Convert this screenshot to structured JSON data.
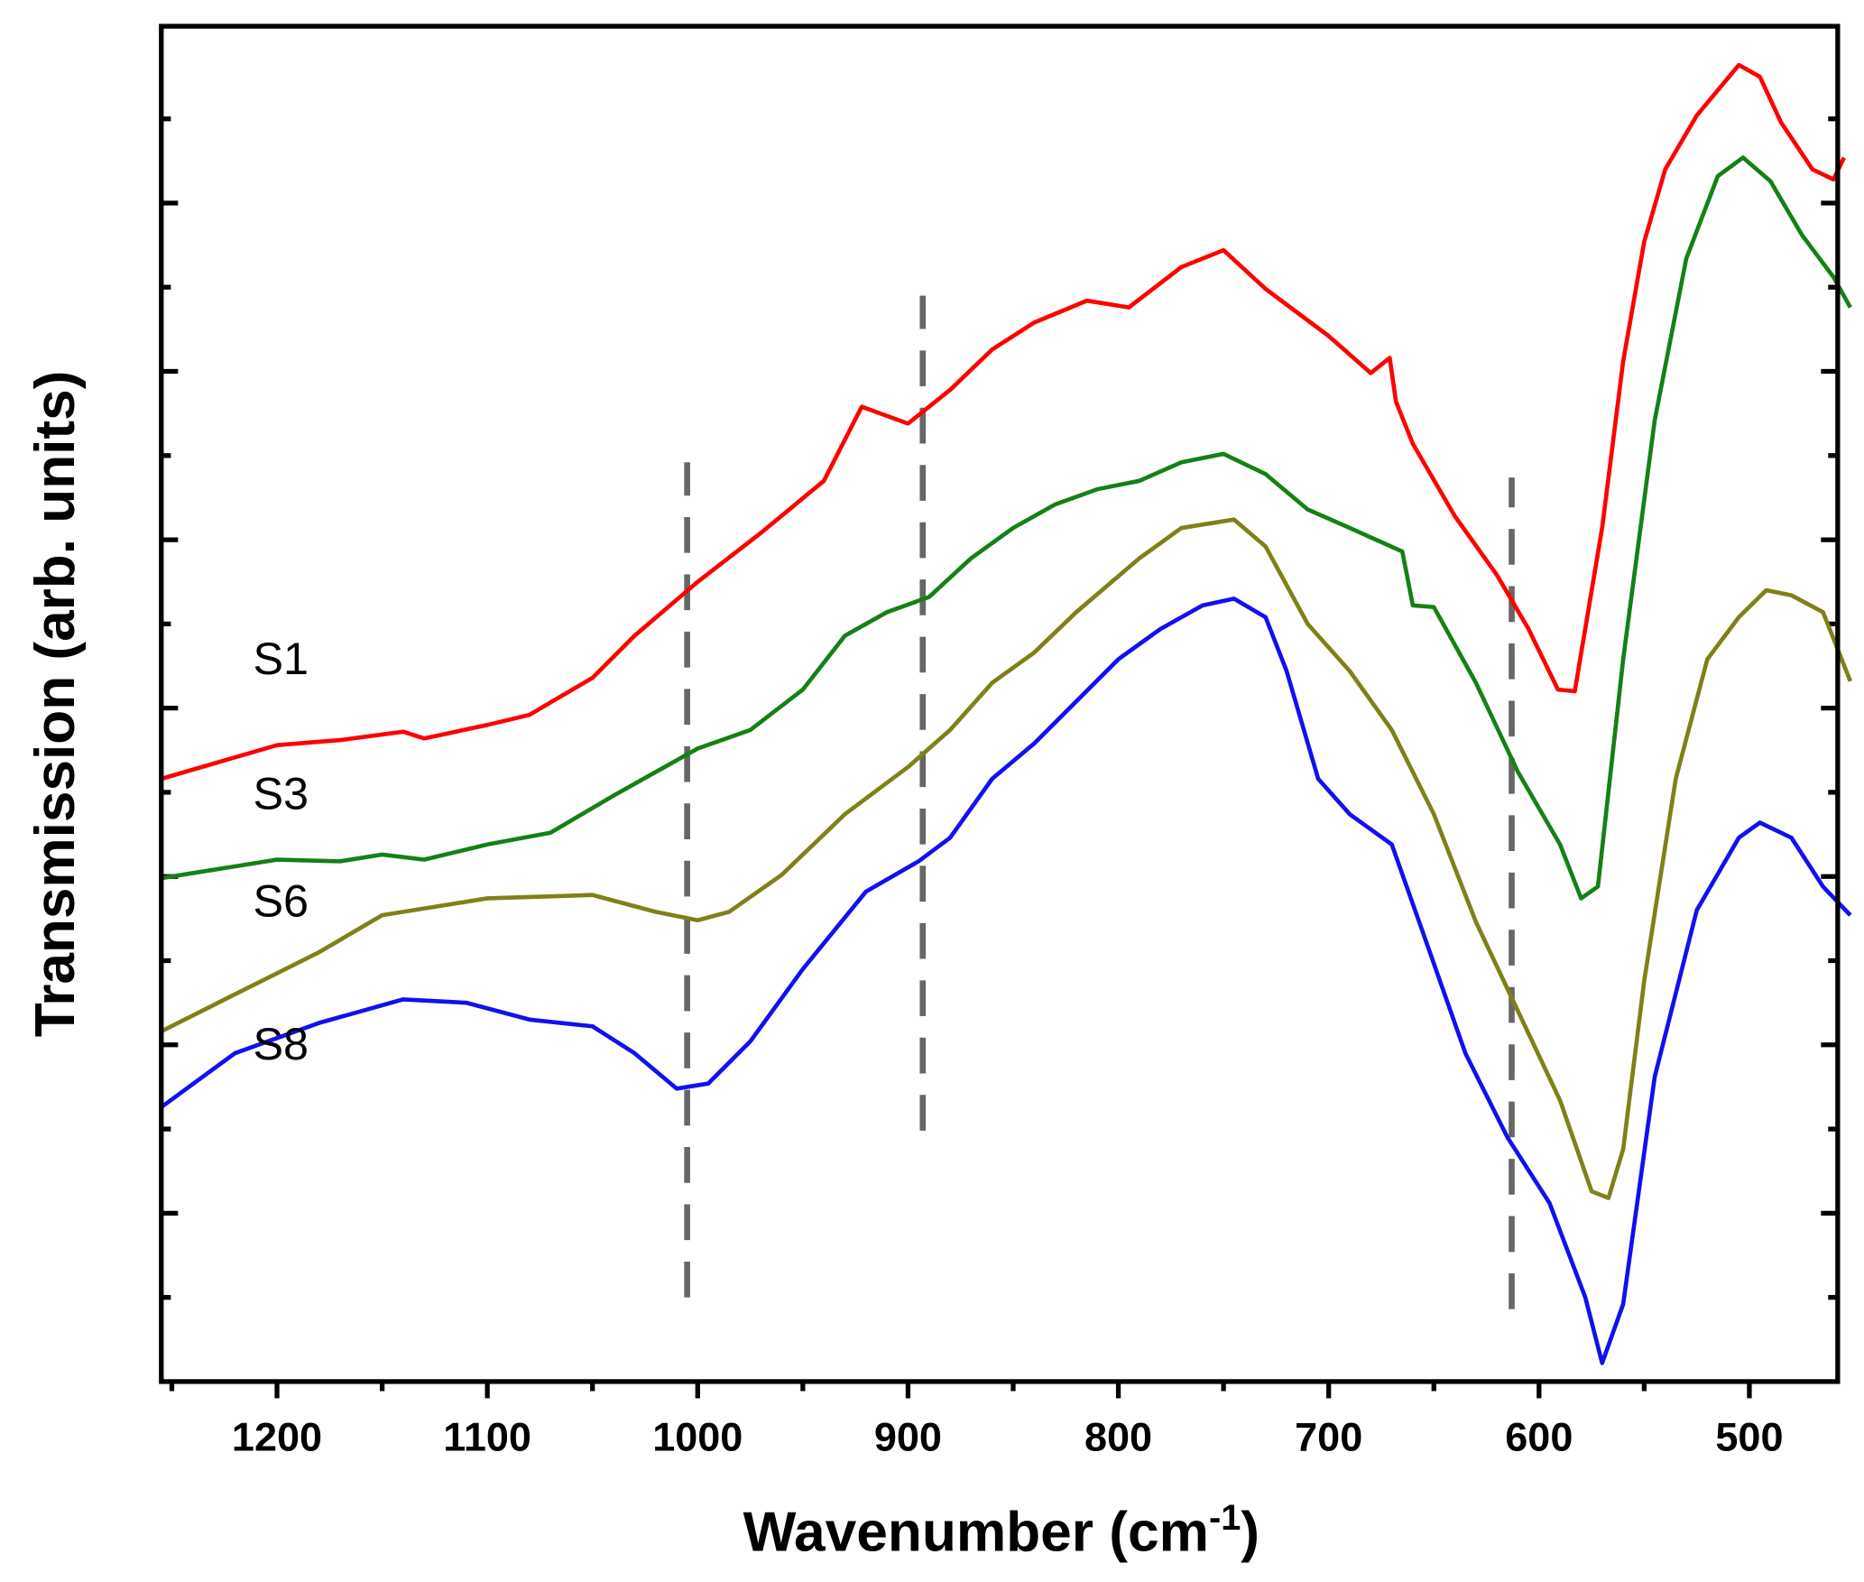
{
  "chart_data": {
    "type": "line",
    "xlabel": {
      "text": "Wavenumber (cm",
      "sup": "-1",
      "end": ")"
    },
    "ylabel": "Transmission (arb. units)",
    "xlim": [
      1255,
      458
    ],
    "ylim": [
      0,
      8.05
    ],
    "xticks": [
      1200,
      1100,
      1000,
      900,
      800,
      700,
      600,
      500
    ],
    "xminor_ticks": [
      1250,
      1150,
      1050,
      950,
      850,
      750,
      650,
      550
    ],
    "yticks": [
      1,
      2,
      3,
      4,
      5,
      6,
      7
    ],
    "yminor_ticks": [
      0.5,
      1.5,
      2.5,
      3.5,
      4.5,
      5.5,
      6.5,
      7.5
    ],
    "series": [
      {
        "name": "S1",
        "color": "#ff0000",
        "x": [
          1255,
          1200,
          1170,
          1140,
          1130,
          1100,
          1080,
          1050,
          1030,
          1000,
          970,
          940,
          922,
          900,
          880,
          860,
          840,
          815,
          795,
          770,
          750,
          730,
          700,
          680,
          671,
          668,
          660,
          640,
          620,
          605,
          591,
          583,
          570,
          560,
          550,
          540,
          525,
          505,
          495,
          485,
          470,
          460,
          455
        ],
        "values": [
          3.58,
          3.78,
          3.81,
          3.86,
          3.82,
          3.9,
          3.96,
          4.18,
          4.43,
          4.75,
          5.04,
          5.35,
          5.79,
          5.69,
          5.89,
          6.13,
          6.29,
          6.42,
          6.38,
          6.62,
          6.72,
          6.49,
          6.21,
          5.99,
          6.08,
          5.82,
          5.57,
          5.14,
          4.79,
          4.47,
          4.11,
          4.1,
          5.07,
          6.06,
          6.77,
          7.2,
          7.52,
          7.82,
          7.75,
          7.48,
          7.2,
          7.14,
          7.27
        ]
      },
      {
        "name": "S3",
        "color": "#168016",
        "x": [
          1255,
          1200,
          1170,
          1150,
          1130,
          1100,
          1070,
          1040,
          1000,
          975,
          950,
          930,
          910,
          890,
          870,
          850,
          830,
          810,
          790,
          770,
          750,
          730,
          710,
          690,
          665,
          660,
          650,
          630,
          610,
          590,
          580,
          572,
          560,
          545,
          530,
          515,
          503,
          490,
          475,
          460,
          452
        ],
        "values": [
          2.99,
          3.1,
          3.09,
          3.13,
          3.1,
          3.19,
          3.26,
          3.48,
          3.76,
          3.87,
          4.11,
          4.43,
          4.57,
          4.66,
          4.89,
          5.07,
          5.21,
          5.3,
          5.35,
          5.46,
          5.51,
          5.39,
          5.18,
          5.07,
          4.93,
          4.61,
          4.6,
          4.15,
          3.62,
          3.19,
          2.87,
          2.94,
          4.29,
          5.71,
          6.67,
          7.16,
          7.27,
          7.13,
          6.81,
          6.56,
          6.38
        ]
      },
      {
        "name": "S6",
        "color": "#808018",
        "x": [
          1255,
          1220,
          1180,
          1150,
          1100,
          1050,
          1020,
          1000,
          985,
          960,
          930,
          900,
          880,
          860,
          840,
          820,
          790,
          770,
          745,
          730,
          710,
          690,
          670,
          650,
          630,
          610,
          590,
          575,
          567,
          560,
          550,
          535,
          520,
          505,
          492,
          480,
          465,
          452
        ],
        "values": [
          2.08,
          2.3,
          2.55,
          2.77,
          2.87,
          2.89,
          2.79,
          2.74,
          2.79,
          3.01,
          3.37,
          3.65,
          3.87,
          4.15,
          4.33,
          4.57,
          4.89,
          5.07,
          5.12,
          4.96,
          4.5,
          4.22,
          3.87,
          3.37,
          2.73,
          2.2,
          1.67,
          1.13,
          1.09,
          1.38,
          2.38,
          3.58,
          4.29,
          4.54,
          4.7,
          4.67,
          4.57,
          4.16
        ]
      },
      {
        "name": "S8",
        "color": "#1010f0",
        "x": [
          1255,
          1220,
          1180,
          1140,
          1110,
          1080,
          1050,
          1030,
          1010,
          995,
          975,
          950,
          920,
          895,
          880,
          860,
          840,
          820,
          800,
          780,
          760,
          745,
          730,
          720,
          705,
          690,
          670,
          655,
          635,
          615,
          595,
          578,
          570,
          560,
          545,
          525,
          505,
          495,
          480,
          465,
          452
        ],
        "values": [
          1.63,
          1.95,
          2.13,
          2.27,
          2.25,
          2.15,
          2.11,
          1.95,
          1.74,
          1.77,
          2.02,
          2.45,
          2.91,
          3.09,
          3.23,
          3.58,
          3.79,
          4.04,
          4.29,
          4.47,
          4.61,
          4.65,
          4.54,
          4.22,
          3.58,
          3.37,
          3.19,
          2.66,
          1.95,
          1.45,
          1.06,
          0.5,
          0.11,
          0.46,
          1.81,
          2.8,
          3.23,
          3.32,
          3.23,
          2.94,
          2.77
        ]
      }
    ],
    "reference_lines": [
      {
        "x": 1005,
        "y": [
          0.5,
          5.46
        ]
      },
      {
        "x": 893,
        "y": [
          1.49,
          6.45
        ]
      },
      {
        "x": 613,
        "y": [
          0.43,
          5.37
        ]
      }
    ]
  }
}
